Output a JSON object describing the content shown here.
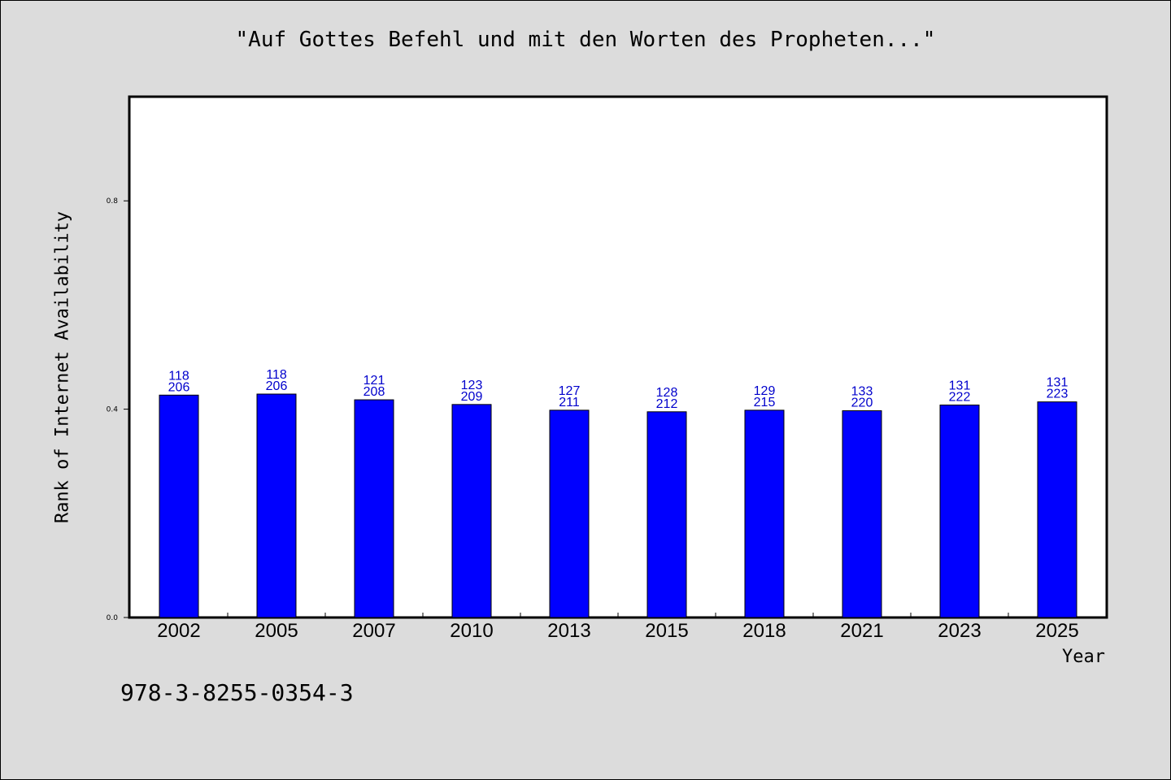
{
  "chart_data": {
    "type": "bar",
    "title": "\"Auf Gottes Befehl und mit den Worten des Propheten...\"",
    "xlabel": "Year",
    "ylabel": "Rank of Internet Availability",
    "ylim": [
      0,
      1.0
    ],
    "yticks": [
      "0.0",
      "0.4",
      "0.8"
    ],
    "ytick_values": [
      0.0,
      0.4,
      0.8
    ],
    "grid": false,
    "bar_color": "#0000ff",
    "label_color": "#0000cc",
    "categories": [
      "2002",
      "2005",
      "2007",
      "2010",
      "2013",
      "2015",
      "2018",
      "2021",
      "2023",
      "2025"
    ],
    "values": [
      0.427,
      0.429,
      0.418,
      0.409,
      0.398,
      0.395,
      0.398,
      0.397,
      0.408,
      0.414
    ],
    "bar_labels": [
      [
        "118",
        "206"
      ],
      [
        "118",
        "206"
      ],
      [
        "121",
        "208"
      ],
      [
        "123",
        "209"
      ],
      [
        "127",
        "211"
      ],
      [
        "128",
        "212"
      ],
      [
        "129",
        "215"
      ],
      [
        "133",
        "220"
      ],
      [
        "131",
        "222"
      ],
      [
        "131",
        "223"
      ]
    ]
  },
  "footer_text": "978-3-8255-0354-3"
}
